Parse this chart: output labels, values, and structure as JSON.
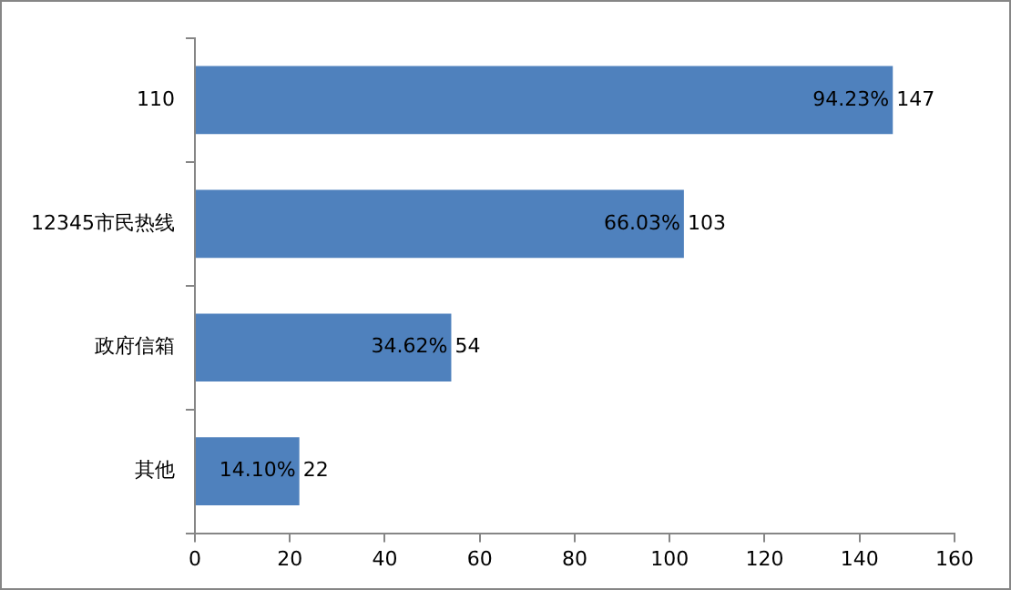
{
  "chart_data": {
    "type": "bar",
    "orientation": "horizontal",
    "categories": [
      "110",
      "12345市民热线",
      "政府信箱",
      "其他"
    ],
    "values": [
      147,
      103,
      54,
      22
    ],
    "color": "#4f81bd",
    "value_labels": [
      "94.23% 147",
      "66.03% 103",
      "34.62% 54",
      "14.10% 22"
    ],
    "xlim": [
      0,
      160
    ],
    "xticks": [
      0,
      20,
      40,
      60,
      80,
      100,
      120,
      140,
      160
    ],
    "grid": false,
    "legend": false
  }
}
